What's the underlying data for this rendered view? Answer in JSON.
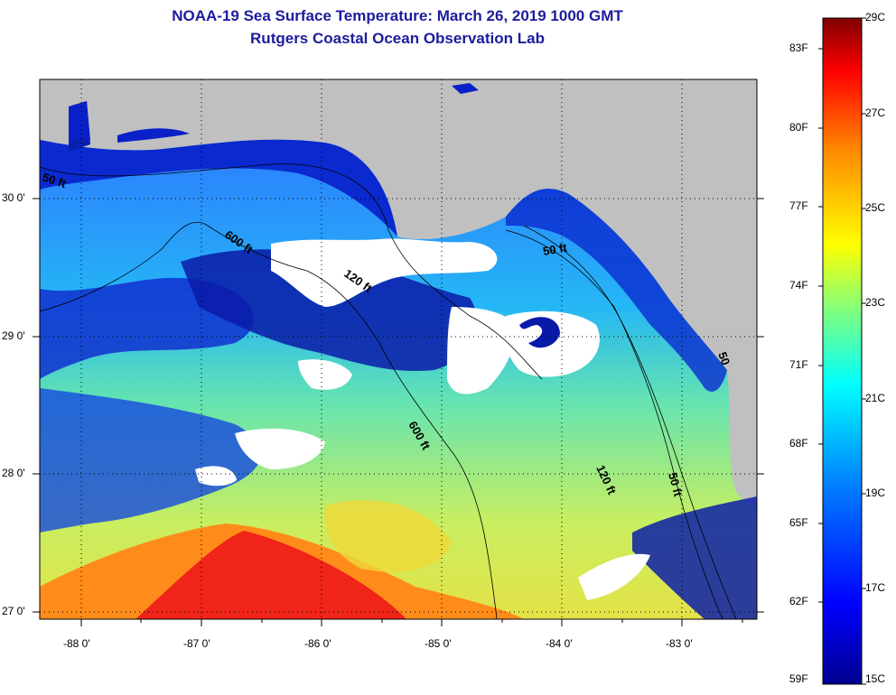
{
  "title": "NOAA-19 Sea Surface Temperature:  March 26, 2019 1000 GMT",
  "subtitle": "Rutgers Coastal Ocean Observation Lab",
  "map": {
    "lat_labels": [
      "30 0'",
      "29 0'",
      "28 0'",
      "27 0'"
    ],
    "lon_labels": [
      "-88 0'",
      "-87 0'",
      "-86 0'",
      "-85 0'",
      "-84 0'",
      "-83 0'"
    ],
    "contours": [
      "50 ft",
      "600 ft",
      "120 ft",
      "50 ft",
      "600 ft",
      "120 ft",
      "50 ft",
      "50"
    ]
  },
  "colorbar": {
    "fahrenheit": [
      "83F",
      "80F",
      "77F",
      "74F",
      "71F",
      "68F",
      "65F",
      "62F",
      "59F"
    ],
    "celsius": [
      "29C",
      "27C",
      "25C",
      "23C",
      "21C",
      "19C",
      "17C",
      "15C"
    ],
    "colors": [
      "#7f0000",
      "#ff0000",
      "#ff8a00",
      "#ffff00",
      "#7fff7f",
      "#00ffff",
      "#0080ff",
      "#0000ff",
      "#00008f"
    ]
  }
}
